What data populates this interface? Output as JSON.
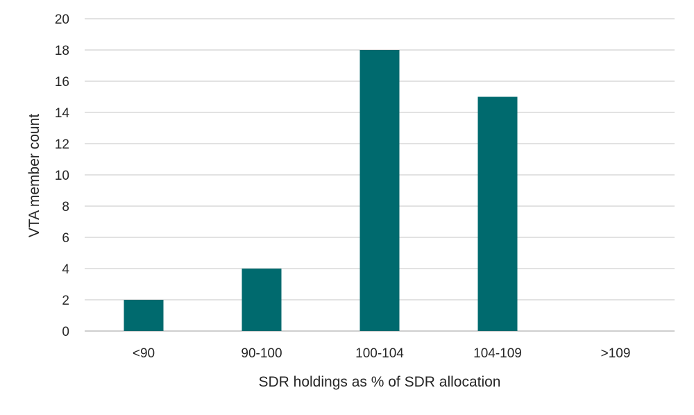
{
  "chart_data": {
    "type": "bar",
    "title": "",
    "xlabel": "SDR holdings as % of SDR allocation",
    "ylabel": "VTA member count",
    "categories": [
      "<90",
      "90-100",
      "100-104",
      "104-109",
      ">109"
    ],
    "values": [
      2,
      4,
      18,
      15,
      0
    ],
    "ylim": [
      0,
      20
    ],
    "yticks": [
      0,
      2,
      4,
      6,
      8,
      10,
      12,
      14,
      16,
      18,
      20
    ],
    "grid": true,
    "legend": "none",
    "bar_color": "#006a6e"
  }
}
